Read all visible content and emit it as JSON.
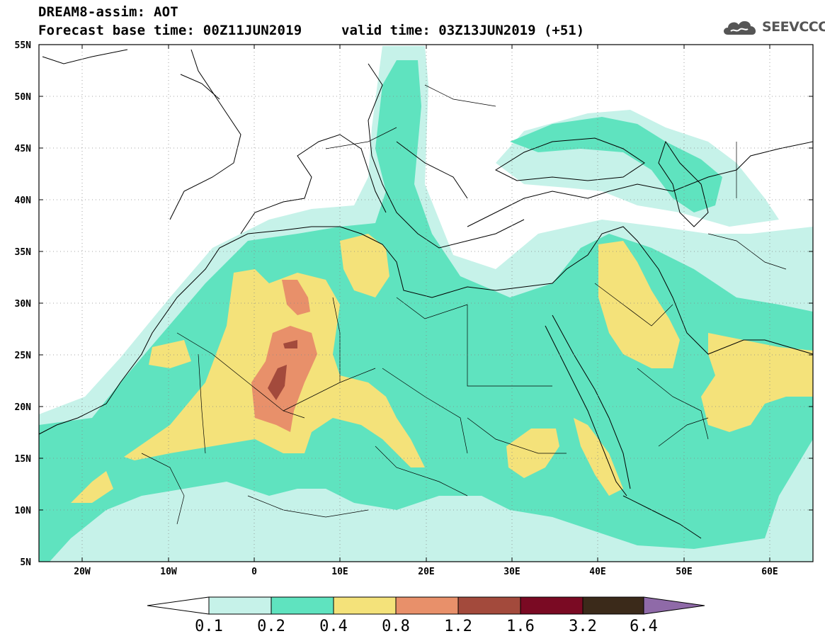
{
  "header": {
    "title": "DREAM8-assim: AOT",
    "base_time": "Forecast base time: 00Z11JUN2019",
    "valid_time": "valid time: 03Z13JUN2019 (+51)",
    "logo_text": "SEEVCCC"
  },
  "map": {
    "lon_labels": [
      "20W",
      "10W",
      "0",
      "10E",
      "20E",
      "30E",
      "40E",
      "50E",
      "60E"
    ],
    "lat_labels": [
      "55N",
      "50N",
      "45N",
      "40N",
      "35N",
      "30N",
      "25N",
      "20N",
      "15N",
      "10N",
      "5N"
    ],
    "colors": {
      "c1": "#c6f2e9",
      "c2": "#5fe3bf",
      "c3": "#f4e27a",
      "c4": "#e8906a",
      "c5": "#a34a3c",
      "c6": "#7a0a23",
      "c7": "#3b2a1a",
      "c8": "#8f6aa8"
    }
  },
  "colorbar": {
    "labels": [
      "0.1",
      "0.2",
      "0.4",
      "0.8",
      "1.2",
      "1.6",
      "3.2",
      "6.4"
    ]
  }
}
